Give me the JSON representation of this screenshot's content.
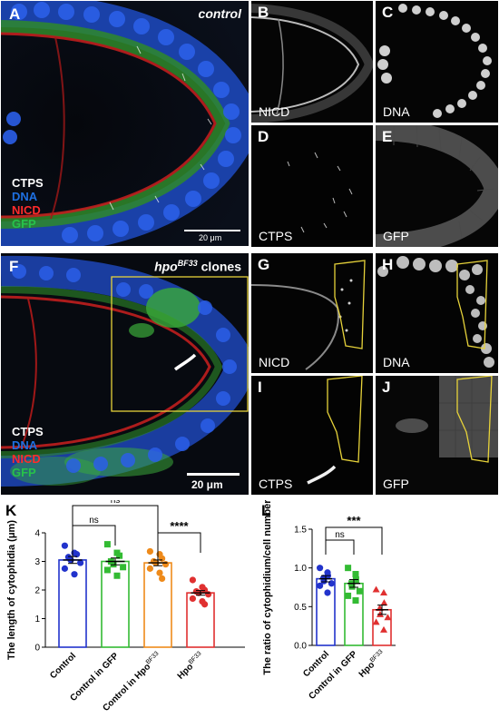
{
  "panels": {
    "A": {
      "label": "A",
      "title": "control",
      "channels": [
        {
          "name": "CTPS",
          "color": "#ffffff"
        },
        {
          "name": "DNA",
          "color": "#1e6fe0"
        },
        {
          "name": "NICD",
          "color": "#ff2b2b"
        },
        {
          "name": "GFP",
          "color": "#27c24a"
        }
      ],
      "scalebar": "20 μm"
    },
    "B": {
      "label": "B",
      "channel": "NICD"
    },
    "C": {
      "label": "C",
      "channel": "DNA"
    },
    "D": {
      "label": "D",
      "channel": "CTPS"
    },
    "E": {
      "label": "E",
      "channel": "GFP"
    },
    "F": {
      "label": "F",
      "title_main": "hpo",
      "title_sup": "BF33",
      "title_rest": " clones",
      "channels": [
        {
          "name": "CTPS",
          "color": "#ffffff"
        },
        {
          "name": "DNA",
          "color": "#1e6fe0"
        },
        {
          "name": "NICD",
          "color": "#ff2b2b"
        },
        {
          "name": "GFP",
          "color": "#27c24a"
        }
      ],
      "scalebar": "20 μm"
    },
    "G": {
      "label": "G",
      "channel": "NICD"
    },
    "H": {
      "label": "H",
      "channel": "DNA"
    },
    "I": {
      "label": "I",
      "channel": "CTPS"
    },
    "J": {
      "label": "J",
      "channel": "GFP"
    }
  },
  "colors": {
    "control": "#2233cc",
    "control_gfp": "#33bb33",
    "control_hpo": "#ee8a1a",
    "hpo": "#e03030",
    "outline": "#e6d23a"
  },
  "chart_data": [
    {
      "panel_label": "K",
      "type": "scatter",
      "ylabel": "The length of cytophidia (μm)",
      "ylim": [
        0,
        4
      ],
      "yticks": [
        0,
        1,
        2,
        3,
        4
      ],
      "categories": [
        {
          "main": "Control",
          "sup": ""
        },
        {
          "main": "Control in GFP",
          "sup": ""
        },
        {
          "main": "Control in Hpo",
          "sup": "BF33"
        },
        {
          "main": "Hpo",
          "sup": "BF33"
        }
      ],
      "series": [
        {
          "mean": 3.05,
          "sem": 0.12,
          "values": [
            3.55,
            3.3,
            3.25,
            3.15,
            3.05,
            2.95,
            2.75,
            2.55
          ]
        },
        {
          "mean": 3.0,
          "sem": 0.12,
          "values": [
            3.6,
            3.3,
            3.2,
            3.0,
            2.9,
            2.8,
            2.7,
            2.5
          ]
        },
        {
          "mean": 2.95,
          "sem": 0.1,
          "values": [
            3.35,
            3.25,
            3.1,
            3.0,
            2.95,
            2.9,
            2.75,
            2.6,
            2.4
          ]
        },
        {
          "mean": 1.9,
          "sem": 0.08,
          "values": [
            2.35,
            2.1,
            2.0,
            1.95,
            1.9,
            1.85,
            1.7,
            1.6,
            1.5
          ]
        }
      ],
      "comparisons": [
        {
          "from": 0,
          "to": 2,
          "label": "ns"
        },
        {
          "from": 0,
          "to": 1,
          "label": "ns"
        },
        {
          "from": 2,
          "to": 3,
          "label": "****"
        }
      ]
    },
    {
      "panel_label": "L",
      "type": "scatter",
      "ylabel": "The ratio of cytophidium/cell number",
      "ylim": [
        0,
        1.5
      ],
      "yticks": [
        0.0,
        0.5,
        1.0,
        1.5
      ],
      "categories": [
        {
          "main": "Control",
          "sup": ""
        },
        {
          "main": "Control in GFP",
          "sup": ""
        },
        {
          "main": "Hpo",
          "sup": "BF33"
        }
      ],
      "series": [
        {
          "mean": 0.86,
          "sem": 0.04,
          "values": [
            1.0,
            0.94,
            0.9,
            0.87,
            0.83,
            0.8,
            0.77,
            0.68
          ]
        },
        {
          "mean": 0.8,
          "sem": 0.05,
          "values": [
            1.0,
            0.92,
            0.85,
            0.8,
            0.76,
            0.7,
            0.64,
            0.58
          ]
        },
        {
          "mean": 0.46,
          "sem": 0.06,
          "values": [
            0.72,
            0.68,
            0.55,
            0.48,
            0.4,
            0.36,
            0.3,
            0.2
          ]
        }
      ],
      "comparisons": [
        {
          "from": 0,
          "to": 1,
          "label": "ns"
        },
        {
          "from": 0,
          "to": 2,
          "label": "***"
        }
      ]
    }
  ]
}
